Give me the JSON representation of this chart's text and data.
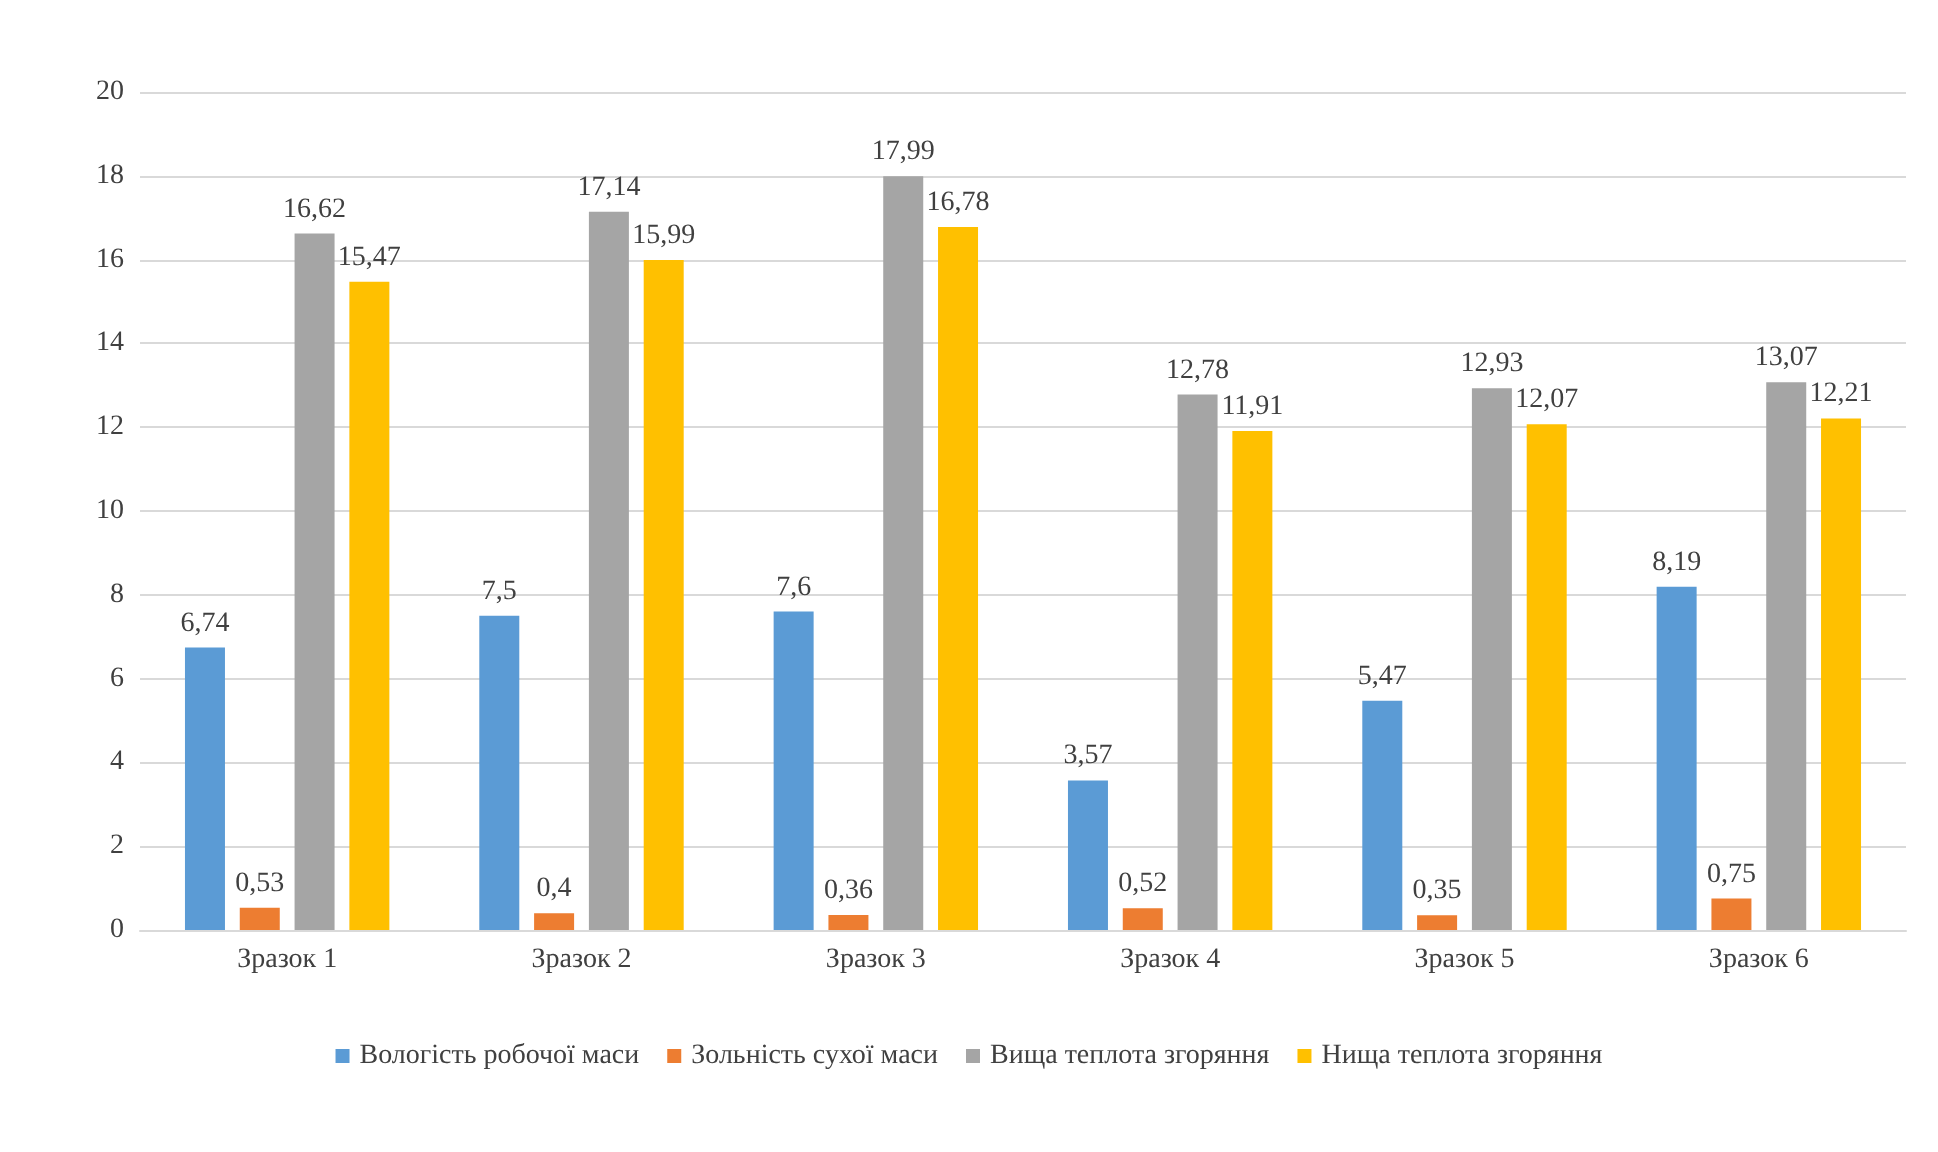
{
  "chart_data": {
    "type": "bar",
    "categories": [
      "Зразок 1",
      "Зразок 2",
      "Зразок 3",
      "Зразок 4",
      "Зразок 5",
      "Зразок 6"
    ],
    "series": [
      {
        "name": "Вологість робочої маси",
        "color": "#5b9bd5",
        "values": [
          6.74,
          7.5,
          7.6,
          3.57,
          5.47,
          8.19
        ],
        "value_labels": [
          "6,74",
          "7,5",
          "7,6",
          "3,57",
          "5,47",
          "8,19"
        ]
      },
      {
        "name": "Зольність сухої маси",
        "color": "#ed7d31",
        "values": [
          0.53,
          0.4,
          0.36,
          0.52,
          0.35,
          0.75
        ],
        "value_labels": [
          "0,53",
          "0,4",
          "0,36",
          "0,52",
          "0,35",
          "0,75"
        ]
      },
      {
        "name": "Вища теплота згоряння",
        "color": "#a5a5a5",
        "values": [
          16.62,
          17.14,
          17.99,
          12.78,
          12.93,
          13.07
        ],
        "value_labels": [
          "16,62",
          "17,14",
          "17,99",
          "12,78",
          "12,93",
          "13,07"
        ]
      },
      {
        "name": "Нища теплота згоряння",
        "color": "#ffc000",
        "values": [
          15.47,
          15.99,
          16.78,
          11.91,
          12.07,
          12.21
        ],
        "value_labels": [
          "15,47",
          "15,99",
          "16,78",
          "11,91",
          "12,07",
          "12,21"
        ]
      }
    ],
    "ylim": [
      0,
      20
    ],
    "yticks": [
      0,
      2,
      4,
      6,
      8,
      10,
      12,
      14,
      16,
      18,
      20
    ],
    "grid": "y",
    "legend": "bottom"
  }
}
